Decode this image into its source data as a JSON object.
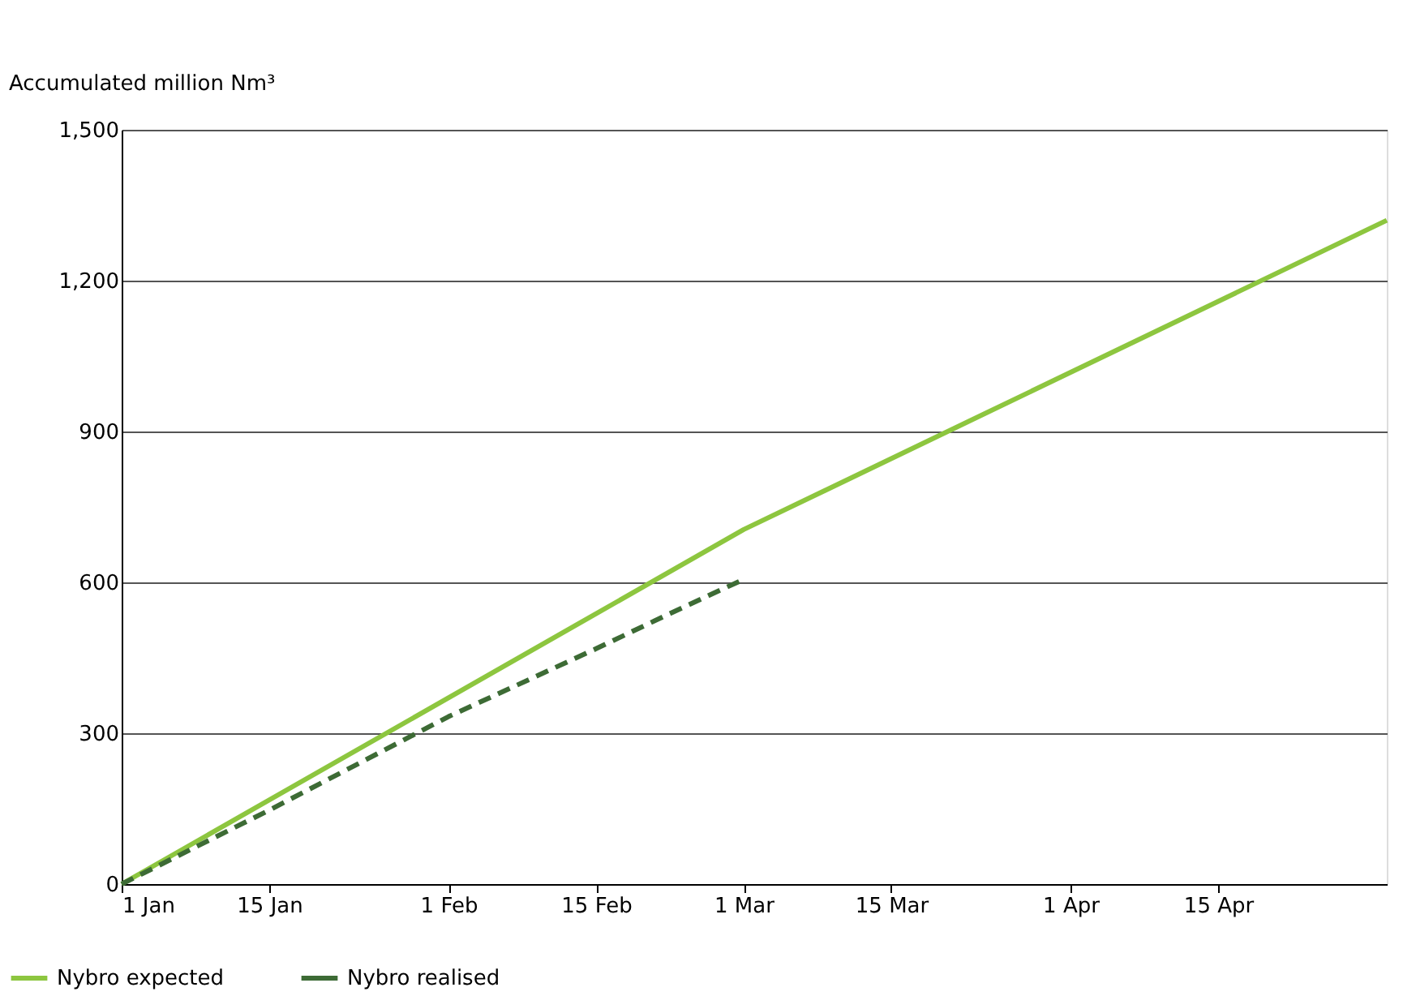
{
  "chart_data": {
    "type": "line",
    "ylabel": "Accumulated million Nm³",
    "x": [
      "--01-01",
      "--03-01",
      "--05-01"
    ],
    "series": [
      {
        "name": "Nybro expected",
        "color": "#8dc63f",
        "line_style": "solid",
        "values": [
          0,
          705,
          1320
        ]
      },
      {
        "name": "Nybro realised",
        "color": "#3d6b35",
        "line_style": "dashed",
        "x": [
          "--01-01",
          "--01-15",
          "--02-01",
          "--02-15",
          "--02-22",
          "--03-01"
        ],
        "values": [
          0,
          147,
          333,
          468,
          538,
          606
        ]
      }
    ],
    "xlim": [
      "--01-01",
      "--05-01"
    ],
    "xticks": [
      {
        "value": "--01-01",
        "label": "1 Jan"
      },
      {
        "value": "--01-15",
        "label": "15 Jan"
      },
      {
        "value": "--02-01",
        "label": "1 Feb"
      },
      {
        "value": "--02-15",
        "label": "15 Feb"
      },
      {
        "value": "--03-01",
        "label": "1 Mar"
      },
      {
        "value": "--03-15",
        "label": "15 Mar"
      },
      {
        "value": "--04-01",
        "label": "1 Apr"
      },
      {
        "value": "--04-15",
        "label": "15 Apr"
      }
    ],
    "ylim": [
      0,
      1500
    ],
    "yticks": [
      {
        "value": 0,
        "label": "0"
      },
      {
        "value": 300,
        "label": "300"
      },
      {
        "value": 600,
        "label": "600"
      },
      {
        "value": 900,
        "label": "900"
      },
      {
        "value": 1200,
        "label": "1,200"
      },
      {
        "value": 1500,
        "label": "1,500"
      }
    ],
    "grid": "y",
    "legend": "bottom left",
    "marker": "none"
  }
}
